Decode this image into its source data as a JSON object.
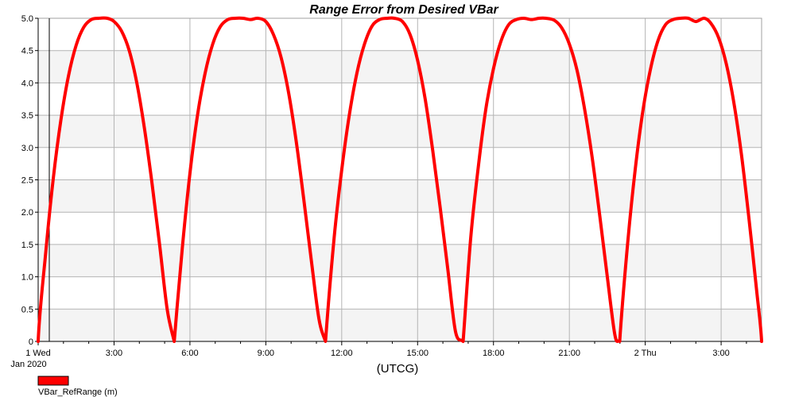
{
  "chart_data": {
    "type": "line",
    "title": "Range Error from Desired VBar",
    "xlabel": "(UTCG)",
    "ylabel": "",
    "x_unit": "hours since 2020-01-01 00:00 UTCG",
    "xlim": [
      0,
      28.6
    ],
    "ylim": [
      0,
      5.0
    ],
    "y_ticks": [
      {
        "value": 0,
        "label": "0"
      },
      {
        "value": 0.5,
        "label": "0.5"
      },
      {
        "value": 1.0,
        "label": "1.0"
      },
      {
        "value": 1.5,
        "label": "1.5"
      },
      {
        "value": 2.0,
        "label": "2.0"
      },
      {
        "value": 2.5,
        "label": "2.5"
      },
      {
        "value": 3.0,
        "label": "3.0"
      },
      {
        "value": 3.5,
        "label": "3.5"
      },
      {
        "value": 4.0,
        "label": "4.0"
      },
      {
        "value": 4.5,
        "label": "4.5"
      },
      {
        "value": 5.0,
        "label": "5.0"
      }
    ],
    "x_ticks": [
      {
        "value": 0,
        "label": "1 Wed",
        "sublabel": "Jan 2020"
      },
      {
        "value": 3,
        "label": "3:00"
      },
      {
        "value": 6,
        "label": "6:00"
      },
      {
        "value": 9,
        "label": "9:00"
      },
      {
        "value": 12,
        "label": "12:00"
      },
      {
        "value": 15,
        "label": "15:00"
      },
      {
        "value": 18,
        "label": "18:00"
      },
      {
        "value": 21,
        "label": "21:00"
      },
      {
        "value": 24,
        "label": "2 Thu"
      },
      {
        "value": 27,
        "label": "3:00"
      }
    ],
    "grid": true,
    "legend_position": "bottom-left",
    "series": [
      {
        "name": "VBar_RefRange (m)",
        "color": "#ff0000",
        "x": [
          0.0,
          0.3,
          0.6,
          0.9,
          1.2,
          1.5,
          1.8,
          2.1,
          2.4,
          2.73,
          3.0,
          3.3,
          3.6,
          3.9,
          4.2,
          4.5,
          4.8,
          5.1,
          5.38,
          5.7,
          6.0,
          6.3,
          6.6,
          6.9,
          7.2,
          7.5,
          7.8,
          8.1,
          8.4,
          8.68,
          9.0,
          9.3,
          9.6,
          9.9,
          10.2,
          10.5,
          10.8,
          11.1,
          11.36,
          11.7,
          12.0,
          12.3,
          12.6,
          12.9,
          13.2,
          13.5,
          13.8,
          14.08,
          14.4,
          14.7,
          15.0,
          15.3,
          15.6,
          15.9,
          16.2,
          16.5,
          16.8,
          17.1,
          17.4,
          17.7,
          18.0,
          18.3,
          18.6,
          18.9,
          19.2,
          19.5,
          19.8,
          20.07,
          20.4,
          20.7,
          21.0,
          21.3,
          21.6,
          21.9,
          22.2,
          22.5,
          22.8,
          22.99,
          23.3,
          23.6,
          23.9,
          24.2,
          24.5,
          24.8,
          25.1,
          25.4,
          25.7,
          26.0,
          26.33,
          26.6,
          26.9,
          27.2,
          27.5,
          27.8,
          28.1,
          28.4,
          28.6
        ],
        "y": [
          0.0,
          1.38,
          2.53,
          3.43,
          4.11,
          4.58,
          4.86,
          4.98,
          5.0,
          5.0,
          4.95,
          4.8,
          4.5,
          4.0,
          3.3,
          2.45,
          1.5,
          0.5,
          0.0,
          1.45,
          2.6,
          3.5,
          4.15,
          4.6,
          4.87,
          4.98,
          5.0,
          5.0,
          4.98,
          5.0,
          4.95,
          4.75,
          4.4,
          3.85,
          3.1,
          2.2,
          1.25,
          0.35,
          0.0,
          1.6,
          2.65,
          3.5,
          4.15,
          4.6,
          4.88,
          4.98,
          5.0,
          5.0,
          4.95,
          4.75,
          4.35,
          3.75,
          2.95,
          2.05,
          1.1,
          0.15,
          0.0,
          1.6,
          2.7,
          3.6,
          4.22,
          4.65,
          4.9,
          4.98,
          5.0,
          4.98,
          5.0,
          5.0,
          4.97,
          4.85,
          4.6,
          4.2,
          3.6,
          2.85,
          1.95,
          1.0,
          0.1,
          0.0,
          1.5,
          2.65,
          3.55,
          4.2,
          4.65,
          4.9,
          4.98,
          5.0,
          5.0,
          4.95,
          5.0,
          4.92,
          4.7,
          4.3,
          3.7,
          2.9,
          1.9,
          0.8,
          0.0
        ]
      }
    ]
  }
}
